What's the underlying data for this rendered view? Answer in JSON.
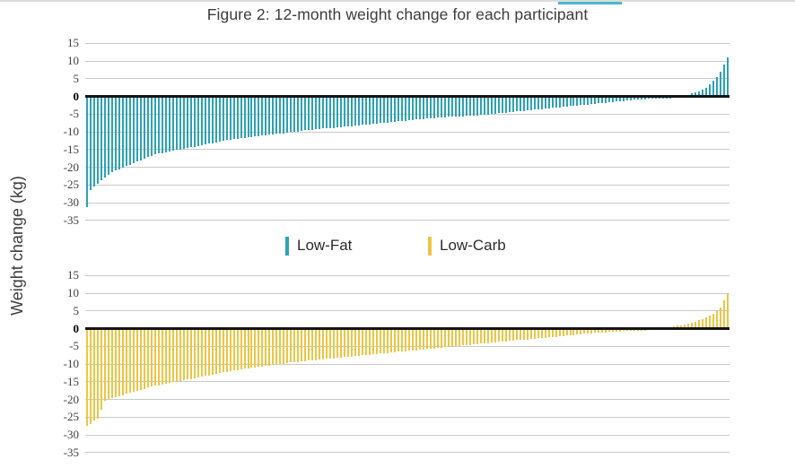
{
  "figure": {
    "title": "Figure 2: 12-month weight change for each participant",
    "y_axis_title": "Weight change (kg)"
  },
  "legend": {
    "items": [
      {
        "label": "Low-Fat",
        "color": "#2da2b5"
      },
      {
        "label": "Low-Carb",
        "color": "#edc545"
      }
    ]
  },
  "colors": {
    "lowfat_bar": "#2da2b5",
    "lowcarb_bar": "#edc545",
    "gridline": "#c9c9c9",
    "zero_line": "#141414",
    "top_accent": "#49b8cc"
  },
  "chart_data": [
    {
      "type": "bar",
      "name": "Low-Fat",
      "title": "Figure 2: 12-month weight change for each participant",
      "ylabel": "Weight change (kg)",
      "xlabel": "",
      "ylim": [
        -35,
        15
      ],
      "yticks": [
        15,
        10,
        5,
        0,
        -5,
        -10,
        -15,
        -20,
        -25,
        -30,
        -35
      ],
      "grid": true,
      "legend_position": "between-panels",
      "color": "#2da2b5",
      "values": [
        -31,
        -26,
        -25,
        -24.2,
        -23.4,
        -22.6,
        -21.8,
        -21,
        -20.6,
        -20.2,
        -19.8,
        -19.3,
        -18.9,
        -18.5,
        -18,
        -17.6,
        -17.2,
        -16.8,
        -16.4,
        -16,
        -15.8,
        -15.6,
        -15.4,
        -15.2,
        -15,
        -14.8,
        -14.6,
        -14.4,
        -14.2,
        -14,
        -13.8,
        -13.6,
        -13.4,
        -13.2,
        -13,
        -12.8,
        -12.6,
        -12.4,
        -12.2,
        -12,
        -11.8,
        -11.7,
        -11.6,
        -11.5,
        -11.3,
        -11.2,
        -11.1,
        -11,
        -10.8,
        -10.7,
        -10.6,
        -10.5,
        -10.3,
        -10.2,
        -10.1,
        -10,
        -9.8,
        -9.7,
        -9.6,
        -9.5,
        -9.4,
        -9.2,
        -9.1,
        -9,
        -8.9,
        -8.8,
        -8.7,
        -8.6,
        -8.55,
        -8.5,
        -8.4,
        -8.3,
        -8.2,
        -8.1,
        -8,
        -7.9,
        -7.8,
        -7.7,
        -7.6,
        -7.5,
        -7.4,
        -7.3,
        -7.2,
        -7.1,
        -7,
        -6.9,
        -6.8,
        -6.7,
        -6.6,
        -6.5,
        -6.4,
        -6.3,
        -6.2,
        -6.1,
        -6,
        -5.9,
        -5.8,
        -5.7,
        -5.6,
        -5.5,
        -5.45,
        -5.4,
        -5.35,
        -5.3,
        -5.25,
        -5.2,
        -5.15,
        -5.1,
        -5.05,
        -5,
        -4.9,
        -4.8,
        -4.7,
        -4.6,
        -4.5,
        -4.4,
        -4.3,
        -4.2,
        -4.1,
        -4,
        -3.9,
        -3.8,
        -3.7,
        -3.6,
        -3.5,
        -3.4,
        -3.3,
        -3.2,
        -3.1,
        -3,
        -2.9,
        -2.8,
        -2.7,
        -2.6,
        -2.5,
        -2.4,
        -2.3,
        -2.2,
        -2.1,
        -2,
        -1.9,
        -1.8,
        -1.7,
        -1.6,
        -1.5,
        -1.4,
        -1.3,
        -1.2,
        -1.1,
        -1,
        -0.9,
        -0.8,
        -0.7,
        -0.6,
        -0.5,
        -0.45,
        -0.4,
        -0.35,
        -0.3,
        -0.25,
        -0.2,
        -0.15,
        -0.1,
        -0.05,
        0.05,
        0.1,
        0.2,
        0.3,
        0.5,
        0.8,
        1.1,
        1.5,
        2,
        2.5,
        3.5,
        4.5,
        5.5,
        7,
        9,
        11
      ]
    },
    {
      "type": "bar",
      "name": "Low-Carb",
      "title": "Figure 2: 12-month weight change for each participant",
      "ylabel": "Weight change (kg)",
      "xlabel": "",
      "ylim": [
        -35,
        15
      ],
      "yticks": [
        15,
        10,
        5,
        0,
        -5,
        -10,
        -15,
        -20,
        -25,
        -30,
        -35
      ],
      "grid": true,
      "legend_position": "between-panels",
      "color": "#edc545",
      "values": [
        -27,
        -26.5,
        -25.5,
        -25,
        -22.5,
        -20,
        -19.5,
        -19.2,
        -19,
        -18.7,
        -18.4,
        -18.1,
        -17.8,
        -17.5,
        -17.2,
        -16.9,
        -16.6,
        -16.3,
        -16,
        -15.8,
        -15.6,
        -15.4,
        -15.2,
        -15,
        -14.8,
        -14.6,
        -14.4,
        -14.2,
        -14,
        -13.8,
        -13.6,
        -13.4,
        -13.2,
        -13,
        -12.8,
        -12.6,
        -12.4,
        -12.2,
        -12,
        -11.8,
        -11.6,
        -11.5,
        -11.3,
        -11.2,
        -11,
        -10.9,
        -10.7,
        -10.6,
        -10.4,
        -10.3,
        -10.1,
        -10,
        -9.9,
        -9.7,
        -9.6,
        -9.5,
        -9.3,
        -9.2,
        -9.1,
        -9,
        -8.9,
        -8.8,
        -8.7,
        -8.6,
        -8.5,
        -8.4,
        -8.3,
        -8.2,
        -8.1,
        -8,
        -7.9,
        -7.8,
        -7.7,
        -7.6,
        -7.5,
        -7.4,
        -7.3,
        -7.2,
        -7.1,
        -7,
        -6.9,
        -6.8,
        -6.7,
        -6.6,
        -6.5,
        -6.4,
        -6.3,
        -6.2,
        -6.1,
        -6,
        -5.9,
        -5.8,
        -5.7,
        -5.6,
        -5.5,
        -5.4,
        -5.3,
        -5.2,
        -5.1,
        -5,
        -4.9,
        -4.8,
        -4.7,
        -4.6,
        -4.5,
        -4.4,
        -4.3,
        -4.2,
        -4.1,
        -4,
        -3.9,
        -3.8,
        -3.7,
        -3.6,
        -3.5,
        -3.4,
        -3.3,
        -3.2,
        -3.1,
        -3,
        -2.9,
        -2.8,
        -2.75,
        -2.7,
        -2.6,
        -2.5,
        -2.4,
        -2.3,
        -2.2,
        -2.1,
        -2,
        -1.9,
        -1.8,
        -1.7,
        -1.6,
        -1.5,
        -1.4,
        -1.3,
        -1.2,
        -1.1,
        -1,
        -0.9,
        -0.85,
        -0.8,
        -0.75,
        -0.7,
        -0.6,
        -0.5,
        -0.45,
        -0.4,
        -0.35,
        -0.3,
        -0.25,
        -0.2,
        -0.15,
        -0.1,
        -0.05,
        0.05,
        0.1,
        0.15,
        0.2,
        0.3,
        0.4,
        0.5,
        0.6,
        0.8,
        1,
        1.2,
        1.4,
        1.7,
        2,
        2.3,
        2.7,
        3.1,
        3.6,
        4.2,
        5,
        6,
        8,
        10
      ]
    }
  ]
}
